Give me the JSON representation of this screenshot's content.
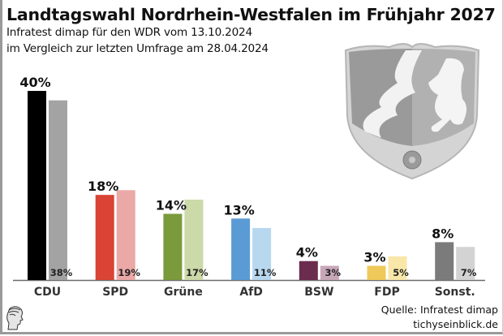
{
  "header": {
    "title": "Landtagswahl Nordrhein-Westfalen im Frühjahr 2027",
    "subtitle1": "Infratest dimap für den WDR vom 13.10.2024",
    "subtitle2": "im Vergleich zur letzten Umfrage am 28.04.2024"
  },
  "footer": {
    "source": "Quelle: Infratest dimap",
    "site": "tichyseinblick.de",
    "logo_icon": "classical-head-logo-icon"
  },
  "decoration": {
    "crest_icon": "nrw-coat-of-arms-icon"
  },
  "chart_data": {
    "type": "bar",
    "title": "Landtagswahl Nordrhein-Westfalen im Frühjahr 2027",
    "xlabel": "",
    "ylabel": "",
    "ylim": [
      0,
      40
    ],
    "grid": false,
    "legend": "none",
    "categories": [
      "CDU",
      "SPD",
      "Grüne",
      "AfD",
      "BSW",
      "FDP",
      "Sonst."
    ],
    "series": [
      {
        "name": "Umfrage 13.10.2024",
        "values": [
          40,
          18,
          14,
          13,
          4,
          3,
          8
        ],
        "labels": [
          "40%",
          "18%",
          "14%",
          "13%",
          "4%",
          "3%",
          "8%"
        ]
      },
      {
        "name": "Umfrage 28.04.2024",
        "values": [
          38,
          19,
          17,
          11,
          3,
          5,
          7
        ],
        "labels": [
          "38%",
          "19%",
          "17%",
          "11%",
          "3%",
          "5%",
          "7%"
        ]
      }
    ],
    "colors_current": [
      "#000000",
      "#d94434",
      "#7a9a3c",
      "#5b9bd5",
      "#6b2c4e",
      "#efc95a",
      "#7b7b7b"
    ],
    "colors_previous": [
      "#a3a3a3",
      "#eaa8a6",
      "#ccd9a8",
      "#b7d8ee",
      "#c8a7b8",
      "#f8e7a8",
      "#d3d3d3"
    ]
  }
}
